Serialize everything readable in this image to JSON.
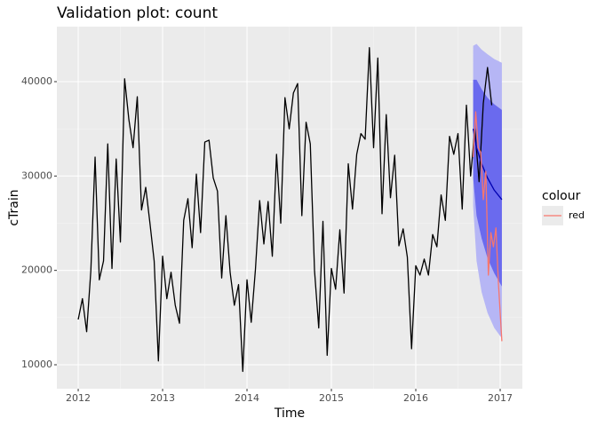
{
  "chart_data": {
    "type": "line",
    "title": "Validation plot: count",
    "x_label": "Time",
    "y_label": "cTrain",
    "legend_title": "colour",
    "xlim": [
      2011.747,
      2017.263
    ],
    "ylim": [
      7460,
      45830
    ],
    "xticks": [
      2012,
      2013,
      2014,
      2015,
      2016,
      2017
    ],
    "yticks": [
      10000,
      20000,
      30000,
      40000
    ],
    "grid": true,
    "bands": [
      {
        "color": "#b6b6f5",
        "x": [
          2016.68,
          2016.72,
          2016.78,
          2016.85,
          2016.93,
          2017.02
        ],
        "lower": [
          26800,
          21000,
          17700,
          15500,
          13900,
          12800
        ],
        "upper": [
          43800,
          44000,
          43400,
          42900,
          42400,
          42000
        ]
      },
      {
        "color": "#6a6aee",
        "x": [
          2016.68,
          2016.72,
          2016.78,
          2016.85,
          2016.93,
          2017.02
        ],
        "lower": [
          29800,
          25800,
          23400,
          21300,
          19700,
          18300
        ],
        "upper": [
          40200,
          40200,
          39200,
          38300,
          37600,
          37000
        ]
      }
    ],
    "series": [
      {
        "color": "#000000",
        "x": [
          2012.0,
          2012.05,
          2012.1,
          2012.15,
          2012.2,
          2012.25,
          2012.3,
          2012.35,
          2012.4,
          2012.45,
          2012.5,
          2012.55,
          2012.6,
          2012.65,
          2012.7,
          2012.75,
          2012.8,
          2012.85,
          2012.9,
          2012.95,
          2013.0,
          2013.05,
          2013.1,
          2013.15,
          2013.2,
          2013.25,
          2013.3,
          2013.35,
          2013.4,
          2013.45,
          2013.5,
          2013.55,
          2013.6,
          2013.65,
          2013.7,
          2013.75,
          2013.8,
          2013.85,
          2013.9,
          2013.95,
          2014.0,
          2014.05,
          2014.1,
          2014.15,
          2014.2,
          2014.25,
          2014.3,
          2014.35,
          2014.4,
          2014.45,
          2014.5,
          2014.55,
          2014.6,
          2014.65,
          2014.7,
          2014.75,
          2014.8,
          2014.85,
          2014.9,
          2014.95,
          2015.0,
          2015.05,
          2015.1,
          2015.15,
          2015.2,
          2015.25,
          2015.3,
          2015.35,
          2015.4,
          2015.45,
          2015.5,
          2015.55,
          2015.6,
          2015.65,
          2015.7,
          2015.75,
          2015.8,
          2015.85,
          2015.9,
          2015.95,
          2016.0,
          2016.05,
          2016.1,
          2016.15,
          2016.2,
          2016.25,
          2016.3,
          2016.35,
          2016.4,
          2016.45,
          2016.5,
          2016.55,
          2016.6,
          2016.65,
          2016.7,
          2016.75,
          2016.8,
          2016.85,
          2016.9
        ],
        "values": [
          14800,
          17000,
          13500,
          20000,
          32000,
          19000,
          21000,
          33400,
          20200,
          31800,
          23000,
          40300,
          36000,
          33000,
          38400,
          26400,
          28800,
          25000,
          21000,
          10400,
          21500,
          17000,
          19800,
          16300,
          14400,
          25300,
          27600,
          22400,
          30200,
          24000,
          33600,
          33800,
          29800,
          28400,
          19200,
          25800,
          19800,
          16300,
          18500,
          9300,
          19000,
          14500,
          20100,
          27400,
          22800,
          27300,
          21500,
          32300,
          25000,
          38300,
          35000,
          38800,
          39800,
          25800,
          35700,
          33400,
          20000,
          13900,
          25200,
          11000,
          20200,
          18000,
          24300,
          17600,
          31300,
          26500,
          32300,
          34500,
          33900,
          43600,
          33000,
          42500,
          26000,
          36500,
          27700,
          32200,
          22600,
          24400,
          21400,
          11700,
          20500,
          19500,
          21200,
          19500,
          23800,
          22500,
          28000,
          25300,
          34200,
          32300,
          34500,
          26500,
          37500,
          30000,
          35000,
          29400,
          37700,
          41500,
          37500
        ]
      },
      {
        "color": "#0000b0",
        "x": [
          2016.68,
          2016.72,
          2016.78,
          2016.85,
          2016.93,
          2017.02
        ],
        "values": [
          35000,
          33000,
          31300,
          29800,
          28500,
          27500
        ]
      },
      {
        "name": "red",
        "color": "#f8766d",
        "x": [
          2016.68,
          2016.71,
          2016.74,
          2016.77,
          2016.8,
          2016.83,
          2016.86,
          2016.89,
          2016.92,
          2016.95,
          2016.98,
          2017.02
        ],
        "values": [
          32000,
          36800,
          33000,
          32500,
          27500,
          30500,
          19500,
          24000,
          22500,
          24500,
          18500,
          12500
        ]
      }
    ]
  }
}
